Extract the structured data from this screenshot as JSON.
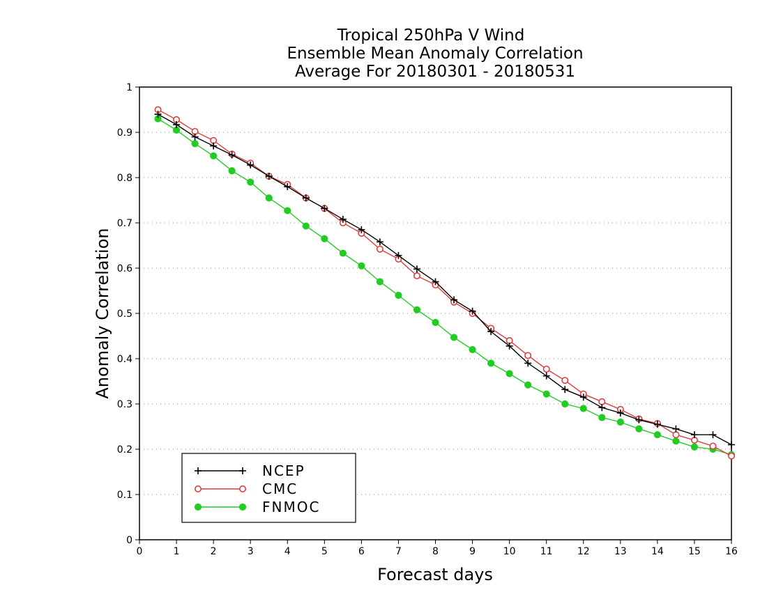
{
  "chart_data": {
    "type": "line",
    "title": [
      "Tropical 250hPa V Wind",
      "Ensemble Mean Anomaly Correlation",
      "Average For 20180301 - 20180531"
    ],
    "xlabel": "Forecast days",
    "ylabel": "Anomaly Correlation",
    "xlim": [
      0,
      16
    ],
    "ylim": [
      0,
      1
    ],
    "x_ticks": [
      "0",
      "1",
      "2",
      "3",
      "4",
      "5",
      "6",
      "7",
      "8",
      "9",
      "10",
      "11",
      "12",
      "13",
      "14",
      "15",
      "16"
    ],
    "y_ticks": [
      "0",
      "0.1",
      "0.2",
      "0.3",
      "0.4",
      "0.5",
      "0.6",
      "0.7",
      "0.8",
      "0.9",
      "1"
    ],
    "grid": "dotted horizontal",
    "legend_position": "bottom-left",
    "x": [
      0.5,
      1,
      1.5,
      2,
      2.5,
      3,
      3.5,
      4,
      4.5,
      5,
      5.5,
      6,
      6.5,
      7,
      7.5,
      8,
      8.5,
      9,
      9.5,
      10,
      10.5,
      11,
      11.5,
      12,
      12.5,
      13,
      13.5,
      14,
      14.5,
      15,
      15.5,
      16
    ],
    "series": [
      {
        "name": "NCEP",
        "color": "#000000",
        "marker": "plus",
        "values": [
          0.94,
          0.917,
          0.89,
          0.87,
          0.85,
          0.828,
          0.803,
          0.78,
          0.755,
          0.732,
          0.708,
          0.685,
          0.658,
          0.628,
          0.598,
          0.57,
          0.53,
          0.505,
          0.46,
          0.428,
          0.39,
          0.362,
          0.332,
          0.315,
          0.292,
          0.28,
          0.265,
          0.255,
          0.245,
          0.232,
          0.232,
          0.21
        ]
      },
      {
        "name": "CMC",
        "color": "#e03c3c",
        "marker": "open-circle",
        "values": [
          0.95,
          0.928,
          0.902,
          0.882,
          0.852,
          0.832,
          0.803,
          0.785,
          0.755,
          0.732,
          0.7,
          0.677,
          0.642,
          0.62,
          0.583,
          0.563,
          0.525,
          0.5,
          0.467,
          0.44,
          0.407,
          0.377,
          0.352,
          0.322,
          0.305,
          0.288,
          0.267,
          0.257,
          0.232,
          0.22,
          0.207,
          0.185
        ]
      },
      {
        "name": "FNMOC",
        "color": "#22cc22",
        "marker": "filled-circle",
        "values": [
          0.93,
          0.905,
          0.875,
          0.848,
          0.815,
          0.79,
          0.755,
          0.727,
          0.693,
          0.665,
          0.633,
          0.605,
          0.57,
          0.54,
          0.508,
          0.48,
          0.447,
          0.42,
          0.39,
          0.367,
          0.342,
          0.322,
          0.3,
          0.29,
          0.27,
          0.26,
          0.245,
          0.232,
          0.218,
          0.205,
          0.2,
          0.188
        ]
      }
    ]
  }
}
